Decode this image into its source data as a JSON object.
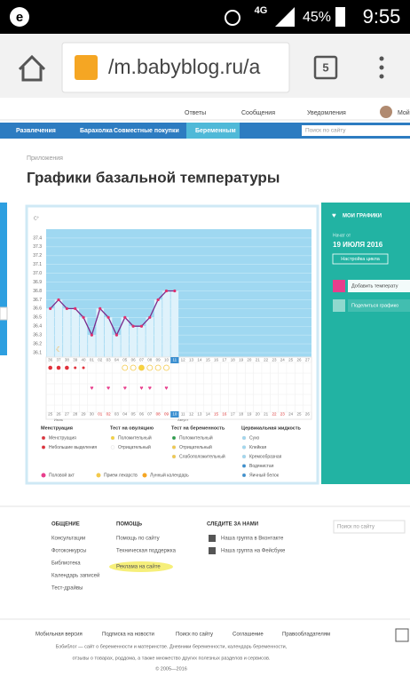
{
  "status_bar": {
    "network": "4G",
    "battery": "45%",
    "time": "9:55"
  },
  "browser": {
    "url": "/m.babyblog.ru/a",
    "tab_count": "5"
  },
  "top_links": [
    "Ответы",
    "Сообщения",
    "Уведомления",
    "Мой"
  ],
  "menu": [
    "Развлечения",
    "Барахолка",
    "Совместные покупки",
    "Беременным"
  ],
  "search_placeholder": "Поиск по сайту",
  "breadcrumb": "Приложения",
  "title": "Графики базальной температуры",
  "chart": {
    "unit": "C°",
    "ylim": [
      36.05,
      37.5
    ],
    "yticks": [
      36.1,
      36.2,
      36.3,
      36.4,
      36.5,
      36.6,
      36.7,
      36.8,
      36.9,
      {
        "value": 37,
        "label": "37.0"
      },
      37.1,
      37.2,
      37.3,
      37.4
    ],
    "temps": [
      36.6,
      36.7,
      36.6,
      36.6,
      36.5,
      36.3,
      36.6,
      36.5,
      36.3,
      36.5,
      36.4,
      36.4,
      36.5,
      36.7,
      36.8,
      36.8
    ],
    "cycle_days": [
      "36",
      "37",
      "38",
      "39",
      "40",
      "01",
      "02",
      "03",
      "04",
      "05",
      "06",
      "07",
      "08",
      "09",
      "10",
      "11",
      "12",
      "13",
      "14",
      "15",
      "16",
      "17",
      "18",
      "19",
      "20",
      "21",
      "22",
      "23",
      "24",
      "25",
      "26",
      "27"
    ],
    "dates": [
      "25",
      "26",
      "27",
      "28",
      "29",
      "30",
      "01",
      "02",
      "03",
      "04",
      "05",
      "06",
      "07",
      "08",
      "09",
      "10",
      "11",
      "12",
      "13",
      "14",
      "15",
      "16",
      "17",
      "18",
      "19",
      "20",
      "21",
      "22",
      "23",
      "24",
      "25",
      "26"
    ],
    "months": [
      "Июль",
      "Август"
    ],
    "legend": [
      {
        "title": "Менструация",
        "items": [
          "Менструация",
          "Небольшие выделения"
        ]
      },
      {
        "title": "Тест на овуляцию",
        "items": [
          "Положительный",
          "Отрицательный"
        ]
      },
      {
        "title": "Тест на беременность",
        "items": [
          "Положительный",
          "Отрицательный",
          "Слабоположительный"
        ]
      },
      {
        "title": "Цервикальная жидкость",
        "items": [
          "Сухо",
          "Клейкая",
          "Кремообразная",
          "Водянистая",
          "Яичный белок"
        ]
      }
    ],
    "extras": [
      "Половой акт",
      "Прием лекарств",
      "Лунный календарь"
    ]
  },
  "side_panel": {
    "heading": "МОИ ГРАФИКИ",
    "started_label": "Начат от",
    "started_date": "19 ИЮЛЯ 2016",
    "settings": "Настройка цикла",
    "actions": [
      "Добавить температу",
      "Поделиться графико"
    ]
  },
  "footer": {
    "columns": [
      {
        "title": "ОБЩЕНИЕ",
        "links": [
          "Консультации",
          "Фотоконкурсы",
          "Библиотека",
          "Календарь записей",
          "Тест-драйвы"
        ]
      },
      {
        "title": "ПОМОЩЬ",
        "links": [
          "Помощь по сайту",
          "Техническая поддержка",
          "Реклама на сайте"
        ]
      },
      {
        "title": "СЛЕДИТЕ ЗА НАМИ",
        "links": [
          "Наша группа в Вконтакте",
          "Наша группа на Фейсбуке"
        ]
      }
    ],
    "search_placeholder": "Поиск по сайту",
    "bottom_links": [
      "Мобильная версия",
      "Подписка на новости",
      "Поиск по сайту",
      "Соглашение",
      "Правообладателям"
    ],
    "about": [
      "Бэбиблог — сайт о беременности и материнстве. Дневники беременности, календарь беременности,",
      "отзывы о товарах, роддома, а также множество других полезных разделов и сервисов.",
      "© 2005—2016"
    ]
  }
}
